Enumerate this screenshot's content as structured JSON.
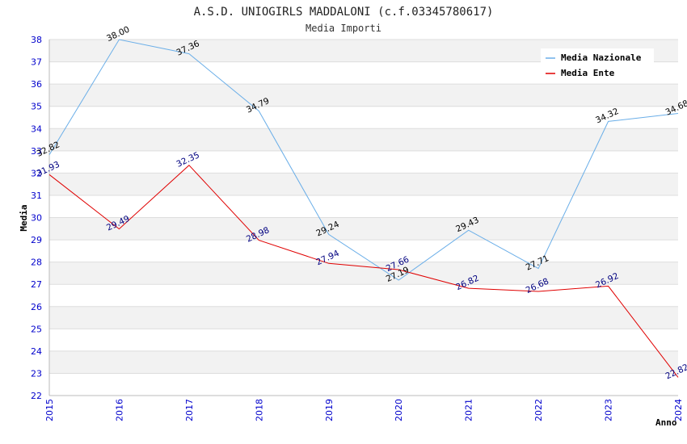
{
  "chart_data": {
    "type": "line",
    "title": "A.S.D. UNIOGIRLS MADDALONI (c.f.03345780617)",
    "subtitle": "Media Importi",
    "xlabel": "Anno",
    "ylabel": "Media",
    "categories": [
      "2015",
      "2016",
      "2017",
      "2018",
      "2019",
      "2020",
      "2021",
      "2022",
      "2023",
      "2024"
    ],
    "ylim": [
      22,
      38
    ],
    "yticks": [
      "22",
      "23",
      "24",
      "25",
      "26",
      "27",
      "28",
      "29",
      "30",
      "31",
      "32",
      "33",
      "34",
      "35",
      "36",
      "37",
      "38"
    ],
    "legend_position": "top-right",
    "series": [
      {
        "name": "Media Nazionale",
        "color": "#6aaee8",
        "label_color": "#000000",
        "values": [
          32.82,
          38.0,
          37.36,
          34.79,
          29.24,
          27.19,
          29.43,
          27.71,
          34.32,
          34.68
        ],
        "labels": [
          "32.82",
          "38.00",
          "37.36",
          "34.79",
          "29.24",
          "27.19",
          "29.43",
          "27.71",
          "34.32",
          "34.68"
        ]
      },
      {
        "name": "Media Ente",
        "color": "#e00000",
        "label_color": "#000080",
        "values": [
          31.93,
          29.49,
          32.35,
          28.98,
          27.94,
          27.66,
          26.82,
          26.68,
          26.92,
          22.82
        ],
        "labels": [
          "31.93",
          "29.49",
          "32.35",
          "28.98",
          "27.94",
          "27.66",
          "26.82",
          "26.68",
          "26.92",
          "22.82"
        ]
      }
    ]
  }
}
